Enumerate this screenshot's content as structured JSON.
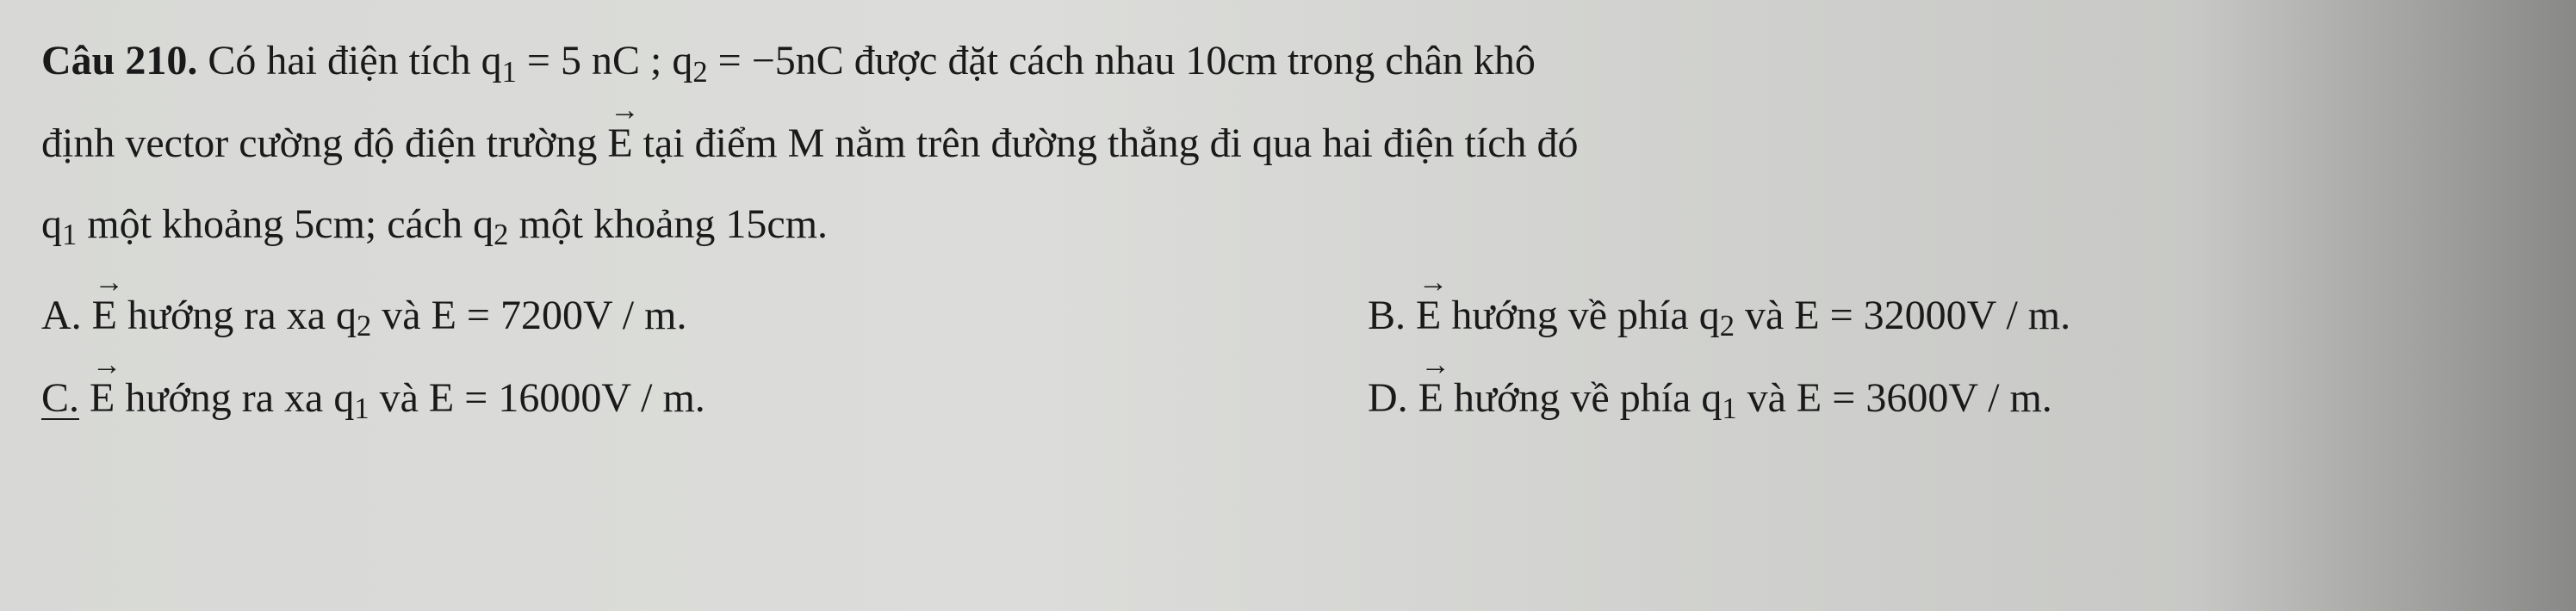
{
  "question": {
    "label": "Câu 210.",
    "line1_a": " Có hai điện tích  q",
    "line1_b": " = 5 nC ;  q",
    "line1_c": " = −5nC  được đặt cách nhau 10cm trong chân khô",
    "line2_a": "định vector cường độ điện trường  ",
    "line2_E": "E",
    "line2_b": "  tại điểm M nằm trên đường thẳng đi qua hai điện tích đó",
    "line3_a": "q",
    "line3_b": " một khoảng 5cm; cách  q",
    "line3_c": "  một khoảng 15cm.",
    "sub1": "1",
    "sub2": "2"
  },
  "options": {
    "A": {
      "label": "A. ",
      "E": "E",
      "t1": " hướng ra xa  q",
      "sub": "2",
      "t2": "  và  E = 7200V / m."
    },
    "B": {
      "label": "B. ",
      "E": "E",
      "t1": " hướng về phía  q",
      "sub": "2",
      "t2": "  và  E = 32000V / m."
    },
    "C": {
      "label": "C.",
      "sp": " ",
      "E": "E",
      "t1": " hướng ra xa  q",
      "sub": "1",
      "t2": "  và  E = 16000V / m."
    },
    "D": {
      "label": "D. ",
      "E": "E",
      "t1": " hướng về phía  q",
      "sub": "1",
      "t2": "  và  E = 3600V / m."
    }
  }
}
